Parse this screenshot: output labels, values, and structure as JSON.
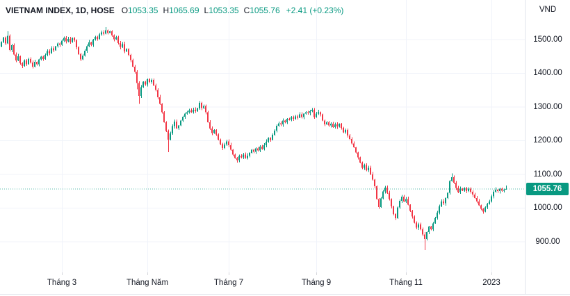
{
  "header": {
    "symbol_title": "VIETNAM INDEX, 1D, HOSE",
    "ohlc": {
      "o_label": "O",
      "o_value": "1053.35",
      "h_label": "H",
      "h_value": "1065.69",
      "l_label": "L",
      "l_value": "1053.35",
      "c_label": "C",
      "c_value": "1055.76"
    },
    "change_text": "+2.41 (+0.23%)"
  },
  "price_axis": {
    "currency": "VND",
    "tick_labels": [
      "1500.00",
      "1400.00",
      "1300.00",
      "1200.00",
      "1100.00",
      "1000.00",
      "900.00"
    ],
    "current_price_label": "1055.76"
  },
  "colors": {
    "up": "#089981",
    "down": "#f23645",
    "text": "#131722",
    "grid": "#f0f3fa",
    "border": "#e0e3eb",
    "badge_bg": "#089981",
    "current_line": "#089981"
  },
  "chart_data": {
    "type": "candlestick",
    "symbol": "VIETNAM INDEX",
    "timeframe": "1D",
    "exchange": "HOSE",
    "currency": "VND",
    "title": "VIETNAM INDEX, 1D, HOSE",
    "last_bar": {
      "open": 1053.35,
      "high": 1065.69,
      "low": 1053.35,
      "close": 1055.76,
      "change": 2.41,
      "change_pct": 0.23
    },
    "current_price": 1055.76,
    "ylim": [
      850,
      1560
    ],
    "y_ticks": [
      1500,
      1400,
      1300,
      1200,
      1100,
      1000,
      900
    ],
    "grid": true,
    "x_labels": [
      "Tháng 3",
      "Tháng Năm",
      "Tháng 7",
      "Tháng 9",
      "Tháng 11",
      "2023"
    ],
    "x_label_indices": [
      29,
      70,
      109,
      151,
      194,
      235
    ],
    "first_open": 1478,
    "closes": [
      1492,
      1505,
      1488,
      1510,
      1468,
      1482,
      1455,
      1437,
      1450,
      1429,
      1421,
      1437,
      1426,
      1441,
      1431,
      1419,
      1433,
      1426,
      1440,
      1448,
      1441,
      1454,
      1465,
      1459,
      1473,
      1467,
      1479,
      1488,
      1483,
      1496,
      1504,
      1494,
      1501,
      1492,
      1504,
      1497,
      1476,
      1456,
      1440,
      1452,
      1466,
      1479,
      1491,
      1484,
      1499,
      1507,
      1501,
      1514,
      1521,
      1517,
      1527,
      1519,
      1524,
      1511,
      1500,
      1506,
      1489,
      1477,
      1486,
      1464,
      1471,
      1454,
      1438,
      1419,
      1403,
      1370,
      1332,
      1358,
      1374,
      1366,
      1381,
      1373,
      1379,
      1363,
      1349,
      1328,
      1308,
      1284,
      1254,
      1228,
      1202,
      1221,
      1242,
      1256,
      1236,
      1244,
      1259,
      1270,
      1279,
      1284,
      1289,
      1283,
      1291,
      1287,
      1295,
      1311,
      1296,
      1302,
      1283,
      1254,
      1235,
      1222,
      1231,
      1218,
      1202,
      1189,
      1177,
      1188,
      1197,
      1186,
      1172,
      1158,
      1147,
      1141,
      1154,
      1149,
      1158,
      1147,
      1155,
      1163,
      1172,
      1166,
      1176,
      1170,
      1181,
      1174,
      1186,
      1196,
      1207,
      1201,
      1217,
      1229,
      1243,
      1251,
      1247,
      1259,
      1254,
      1264,
      1261,
      1269,
      1264,
      1271,
      1267,
      1277,
      1269,
      1279,
      1284,
      1281,
      1287,
      1291,
      1269,
      1279,
      1284,
      1277,
      1259,
      1247,
      1254,
      1244,
      1249,
      1239,
      1247,
      1241,
      1249,
      1237,
      1224,
      1231,
      1214,
      1204,
      1191,
      1179,
      1164,
      1149,
      1134,
      1119,
      1127,
      1111,
      1119,
      1099,
      1084,
      1064,
      1026,
      1002,
      1028,
      1048,
      1060,
      1044,
      1026,
      1004,
      981,
      969,
      1001,
      1021,
      1033,
      1019,
      1026,
      1009,
      991,
      974,
      956,
      941,
      951,
      936,
      921,
      907,
      928,
      944,
      936,
      954,
      969,
      986,
      1004,
      1019,
      1013,
      1029,
      1044,
      1079,
      1091,
      1074,
      1059,
      1046,
      1057,
      1051,
      1059,
      1049,
      1057,
      1047,
      1039,
      1029,
      1019,
      1007,
      997,
      989,
      1001,
      1011,
      1019,
      1034,
      1047,
      1054,
      1049,
      1057,
      1051,
      1053.35,
      1055.76
    ],
    "wick_overrides": {
      "3": {
        "high": 1524
      },
      "50": {
        "high": 1536
      },
      "65": {
        "low": 1352
      },
      "66": {
        "low": 1308
      },
      "80": {
        "low": 1165
      },
      "95": {
        "high": 1317
      },
      "113": {
        "low": 1134
      },
      "181": {
        "low": 997
      },
      "203": {
        "low": 874
      },
      "216": {
        "high": 1102
      },
      "242": {
        "open": 1053.35,
        "high": 1065.69,
        "low": 1053.35,
        "close": 1055.76
      }
    }
  }
}
